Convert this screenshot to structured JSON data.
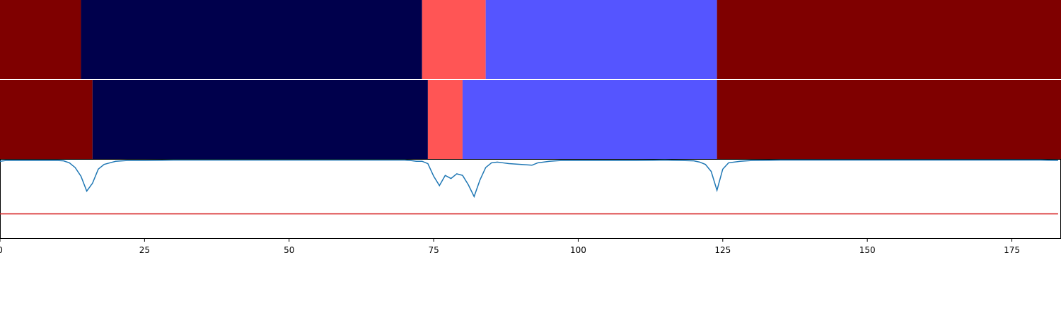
{
  "chart_data": {
    "type": "segmentation-timeline",
    "xlim": [
      0,
      183.5
    ],
    "x_ticks": [
      0,
      25,
      50,
      75,
      100,
      125,
      150,
      175
    ],
    "x_tick_labels": [
      "0",
      "25",
      "50",
      "75",
      "100",
      "125",
      "150",
      "175"
    ],
    "tracks": [
      {
        "segments": [
          {
            "start": 0,
            "end": 14,
            "color": "#7f0000"
          },
          {
            "start": 14,
            "end": 73,
            "color": "#00004c"
          },
          {
            "start": 73,
            "end": 84,
            "color": "#ff5555"
          },
          {
            "start": 84,
            "end": 124,
            "color": "#5555ff"
          },
          {
            "start": 124,
            "end": 183.5,
            "color": "#7f0000"
          }
        ]
      },
      {
        "segments": [
          {
            "start": 0,
            "end": 16,
            "color": "#7f0000"
          },
          {
            "start": 16,
            "end": 74,
            "color": "#00004c"
          },
          {
            "start": 74,
            "end": 80,
            "color": "#ff5555"
          },
          {
            "start": 80,
            "end": 124,
            "color": "#5555ff"
          },
          {
            "start": 124,
            "end": 183.5,
            "color": "#7f0000"
          }
        ]
      }
    ],
    "signal": {
      "color": "#1f77b4",
      "ylim": [
        0,
        1
      ],
      "threshold": 0.31,
      "threshold_color": "#d62728",
      "points": [
        [
          0,
          0.98
        ],
        [
          1,
          0.99
        ],
        [
          2,
          0.99
        ],
        [
          4,
          0.99
        ],
        [
          6,
          0.99
        ],
        [
          8,
          0.99
        ],
        [
          10,
          0.99
        ],
        [
          11,
          0.985
        ],
        [
          12,
          0.96
        ],
        [
          13,
          0.9
        ],
        [
          14,
          0.79
        ],
        [
          15,
          0.6
        ],
        [
          16,
          0.7
        ],
        [
          17,
          0.88
        ],
        [
          18,
          0.94
        ],
        [
          19,
          0.96
        ],
        [
          20,
          0.98
        ],
        [
          22,
          0.99
        ],
        [
          25,
          0.99
        ],
        [
          30,
          0.995
        ],
        [
          35,
          0.995
        ],
        [
          40,
          0.995
        ],
        [
          45,
          0.995
        ],
        [
          50,
          0.995
        ],
        [
          55,
          0.995
        ],
        [
          60,
          0.995
        ],
        [
          65,
          0.995
        ],
        [
          70,
          0.995
        ],
        [
          71,
          0.99
        ],
        [
          72,
          0.98
        ],
        [
          73,
          0.98
        ],
        [
          74,
          0.95
        ],
        [
          75,
          0.79
        ],
        [
          76,
          0.67
        ],
        [
          77,
          0.8
        ],
        [
          78,
          0.76
        ],
        [
          79,
          0.82
        ],
        [
          80,
          0.8
        ],
        [
          81,
          0.68
        ],
        [
          82,
          0.53
        ],
        [
          83,
          0.74
        ],
        [
          84,
          0.9
        ],
        [
          85,
          0.96
        ],
        [
          86,
          0.97
        ],
        [
          87,
          0.96
        ],
        [
          88,
          0.95
        ],
        [
          90,
          0.94
        ],
        [
          92,
          0.93
        ],
        [
          93,
          0.96
        ],
        [
          95,
          0.98
        ],
        [
          97,
          0.99
        ],
        [
          100,
          0.99
        ],
        [
          105,
          0.99
        ],
        [
          110,
          0.99
        ],
        [
          115,
          0.995
        ],
        [
          118,
          0.99
        ],
        [
          120,
          0.985
        ],
        [
          121,
          0.97
        ],
        [
          122,
          0.94
        ],
        [
          123,
          0.85
        ],
        [
          124,
          0.61
        ],
        [
          125,
          0.88
        ],
        [
          126,
          0.96
        ],
        [
          128,
          0.98
        ],
        [
          130,
          0.99
        ],
        [
          135,
          0.995
        ],
        [
          140,
          0.995
        ],
        [
          150,
          0.995
        ],
        [
          160,
          0.995
        ],
        [
          170,
          0.995
        ],
        [
          180,
          0.995
        ],
        [
          183,
          0.99
        ]
      ]
    }
  }
}
